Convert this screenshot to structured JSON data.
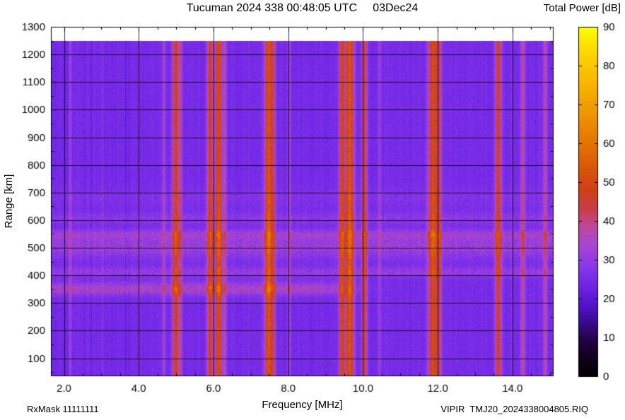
{
  "chart_data": {
    "type": "heatmap",
    "title": "Tucuman 2024 338 00:48:05 UTC     03Dec24",
    "colorbar_title": "Total Power [dB]",
    "xlabel": "Frequency [MHz]",
    "ylabel": "Range [km]",
    "footer_left": "RxMask 11111111",
    "footer_right": "VIPIR  TMJ20_2024338004805.RIQ",
    "x_range": [
      1.65,
      15.1
    ],
    "y_range": [
      35,
      1300
    ],
    "data_top_km": 1248,
    "x_major_ticks": [
      2,
      4,
      6,
      8,
      10,
      12,
      14
    ],
    "x_tick_labels": [
      "2.0",
      "4.0",
      "6.0",
      "8.0",
      "10.0",
      "12.0",
      "14.0"
    ],
    "x_minor_step": 0.5,
    "y_major_ticks": [
      100,
      200,
      300,
      400,
      500,
      600,
      700,
      800,
      900,
      1000,
      1100,
      1200,
      1300
    ],
    "y_tick_labels": [
      "100",
      "200",
      "300",
      "400",
      "500",
      "600",
      "700",
      "800",
      "900",
      "1000",
      "1100",
      "1200",
      "1300"
    ],
    "colorbar": {
      "min": 0,
      "max": 90,
      "ticks": [
        0,
        10,
        20,
        30,
        40,
        50,
        60,
        70,
        80,
        90
      ],
      "tick_labels": [
        "0",
        "10",
        "20",
        "30",
        "40",
        "50",
        "60",
        "70",
        "80",
        "90"
      ]
    },
    "colormap": [
      [
        0,
        "#000000"
      ],
      [
        8,
        "#1e0033"
      ],
      [
        14,
        "#3a0b8c"
      ],
      [
        19,
        "#5714d2"
      ],
      [
        24,
        "#7228e6"
      ],
      [
        29,
        "#8c3ae6"
      ],
      [
        34,
        "#aa46d2"
      ],
      [
        39,
        "#c04896"
      ],
      [
        43,
        "#c93d4b"
      ],
      [
        48,
        "#d04018"
      ],
      [
        54,
        "#d9590a"
      ],
      [
        60,
        "#e47500"
      ],
      [
        68,
        "#f09700"
      ],
      [
        76,
        "#f9b800"
      ],
      [
        84,
        "#ffd900"
      ],
      [
        90,
        "#ffff00"
      ]
    ],
    "background_db": 25,
    "interference_bands": [
      [
        2.17,
        0.03,
        6
      ],
      [
        3.02,
        0.025,
        3
      ],
      [
        4.68,
        0.03,
        8
      ],
      [
        4.99,
        0.06,
        23
      ],
      [
        5.12,
        0.03,
        12
      ],
      [
        5.91,
        0.055,
        22
      ],
      [
        6.14,
        0.065,
        26
      ],
      [
        6.31,
        0.03,
        11
      ],
      [
        7.48,
        0.075,
        27
      ],
      [
        7.62,
        0.03,
        13
      ],
      [
        8.03,
        0.03,
        8
      ],
      [
        9.44,
        0.055,
        23
      ],
      [
        9.65,
        0.075,
        28
      ],
      [
        10.04,
        0.05,
        21
      ],
      [
        10.44,
        0.03,
        7
      ],
      [
        11.88,
        0.09,
        26
      ],
      [
        12.05,
        0.04,
        15
      ],
      [
        13.62,
        0.06,
        21
      ],
      [
        14.28,
        0.045,
        13
      ],
      [
        14.88,
        0.04,
        12
      ]
    ],
    "echo_layers": [
      [
        352,
        16,
        8.5,
        1.65,
        8.8,
        6
      ],
      [
        412,
        13,
        4.5,
        1.65,
        15.1,
        4
      ],
      [
        505,
        30,
        5.5,
        1.65,
        15.1,
        5
      ],
      [
        548,
        12,
        5.5,
        1.65,
        15.1,
        5
      ],
      [
        607,
        15,
        3.2,
        1.65,
        15.1,
        3
      ],
      [
        680,
        25,
        1.5,
        1.65,
        15.1,
        2
      ]
    ]
  }
}
